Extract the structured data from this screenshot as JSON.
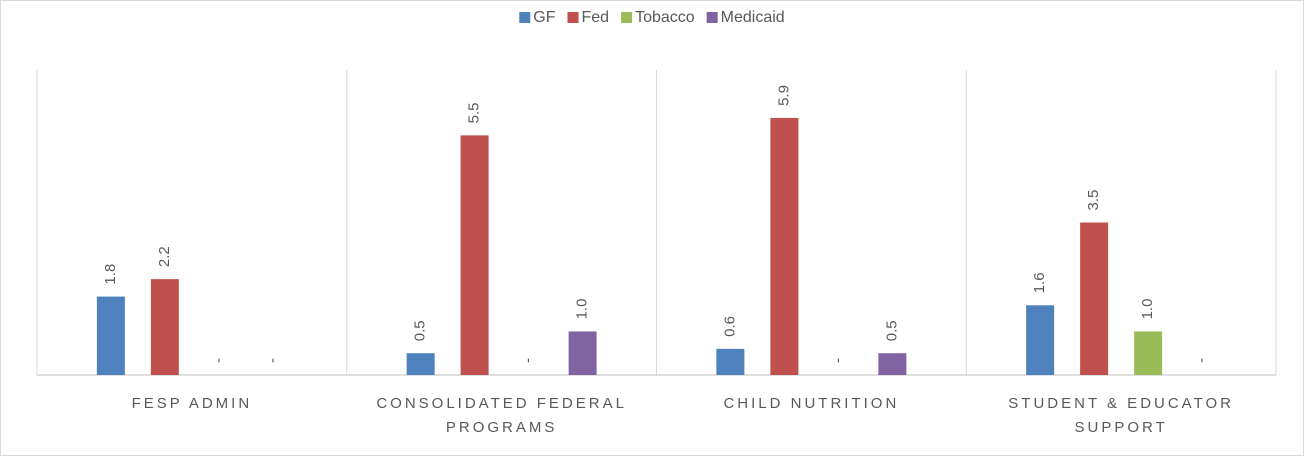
{
  "chart_data": {
    "type": "bar",
    "categories": [
      "FESP ADMIN",
      "CONSOLIDATED FEDERAL PROGRAMS",
      "CHILD NUTRITION",
      "STUDENT & EDUCATOR SUPPORT"
    ],
    "series": [
      {
        "name": "GF",
        "color": "#4f81bd",
        "values": [
          1.8,
          0.5,
          0.6,
          1.6
        ],
        "value_labels": [
          "1.8",
          "0.5",
          "0.6",
          "1.6"
        ]
      },
      {
        "name": "Fed",
        "color": "#c0504d",
        "values": [
          2.2,
          5.5,
          5.9,
          3.5
        ],
        "value_labels": [
          "2.2",
          "5.5",
          "5.9",
          "3.5"
        ]
      },
      {
        "name": "Tobacco",
        "color": "#9bbb59",
        "values": [
          0,
          0,
          0,
          1.0
        ],
        "value_labels": [
          "-",
          "-",
          "-",
          "1.0"
        ]
      },
      {
        "name": "Medicaid",
        "color": "#8064a2",
        "values": [
          0,
          1.0,
          0.5,
          0
        ],
        "value_labels": [
          "-",
          "1.0",
          "0.5",
          "-"
        ]
      }
    ],
    "ylim": [
      0,
      7
    ],
    "legend": "top"
  }
}
